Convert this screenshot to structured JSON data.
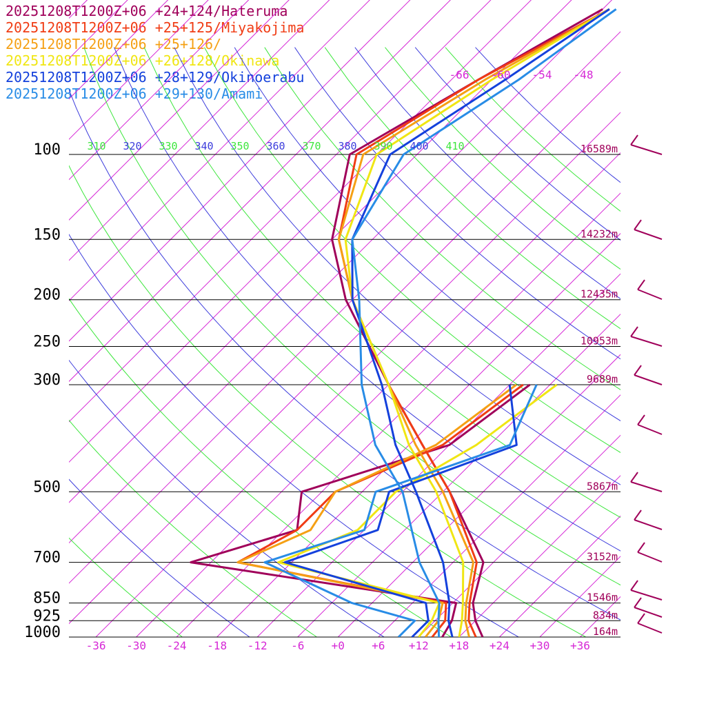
{
  "legend": [
    {
      "label": "20251208T1200Z+06 +24+124/Hateruma",
      "color": "#a0005a"
    },
    {
      "label": "20251208T1200Z+06 +25+125/Miyakojima",
      "color": "#f03c14"
    },
    {
      "label": "20251208T1200Z+06 +25+126/",
      "color": "#f5a014"
    },
    {
      "label": "20251208T1200Z+06 +26+128/Okinawa",
      "color": "#f0e614"
    },
    {
      "label": "20251208T1200Z+06 +28+129/Okinoerabu",
      "color": "#1441dc"
    },
    {
      "label": "20251208T1200Z+06 +29+130/Amami",
      "color": "#288ce6"
    }
  ],
  "chart_data": {
    "type": "line",
    "subtype": "skew-T log-p sounding",
    "x_ticks": [
      "-36",
      "-30",
      "-24",
      "-18",
      "-12",
      "-6",
      "+0",
      "+6",
      "+12",
      "+18",
      "+24",
      "+30",
      "+36"
    ],
    "x_range": [
      -40,
      42
    ],
    "pressure_levels": [
      {
        "p": 100,
        "label": "100",
        "height": "16589m"
      },
      {
        "p": 150,
        "label": "150",
        "height": "14232m"
      },
      {
        "p": 200,
        "label": "200",
        "height": "12435m"
      },
      {
        "p": 250,
        "label": "250",
        "height": "10953m"
      },
      {
        "p": 300,
        "label": "300",
        "height": "9689m"
      },
      {
        "p": 500,
        "label": "500",
        "height": "5867m"
      },
      {
        "p": 700,
        "label": "700",
        "height": "3152m"
      },
      {
        "p": 850,
        "label": "850",
        "height": "1546m"
      },
      {
        "p": 925,
        "label": "925",
        "height": "834m"
      },
      {
        "p": 1000,
        "label": "1000",
        "height": "164m"
      }
    ],
    "theta_labels": [
      "310",
      "320",
      "330",
      "340",
      "350",
      "360",
      "370",
      "380",
      "390",
      "400",
      "410"
    ],
    "mixing_ratio_labels": [
      "-66",
      "-60",
      "-54",
      "-48"
    ],
    "series": [
      {
        "name": "20251208T1200Z+06 +24+124/Hateruma",
        "color": "#a0005a",
        "temp": [
          [
            1000,
            21.5
          ],
          [
            925,
            18
          ],
          [
            850,
            15
          ],
          [
            700,
            10.5
          ],
          [
            500,
            -5
          ],
          [
            400,
            -16
          ],
          [
            300,
            -30
          ],
          [
            200,
            -49
          ],
          [
            150,
            -60
          ],
          [
            100,
            -70
          ],
          [
            70,
            -62
          ],
          [
            50,
            -54
          ]
        ],
        "dew": [
          [
            1000,
            15.5
          ],
          [
            925,
            14.5
          ],
          [
            850,
            12.5
          ],
          [
            700,
            -33
          ],
          [
            600,
            -22
          ],
          [
            500,
            -27
          ],
          [
            400,
            -12
          ],
          [
            300,
            -9
          ]
        ]
      },
      {
        "name": "20251208T1200Z+06 +25+125/Miyakojima",
        "color": "#f03c14",
        "temp": [
          [
            1000,
            20.5
          ],
          [
            925,
            17
          ],
          [
            850,
            14.5
          ],
          [
            700,
            9.5
          ],
          [
            500,
            -5
          ],
          [
            400,
            -16
          ],
          [
            300,
            -30
          ],
          [
            200,
            -48
          ],
          [
            150,
            -59
          ],
          [
            100,
            -69
          ],
          [
            70,
            -62
          ],
          [
            50,
            -53
          ]
        ],
        "dew": [
          [
            1000,
            14
          ],
          [
            925,
            13.5
          ],
          [
            850,
            11
          ],
          [
            700,
            -26
          ],
          [
            600,
            -22
          ],
          [
            500,
            -22
          ],
          [
            400,
            -13
          ],
          [
            300,
            -10
          ]
        ]
      },
      {
        "name": "20251208T1200Z+06 +25+126/",
        "color": "#f5a014",
        "temp": [
          [
            1000,
            19.5
          ],
          [
            925,
            16.5
          ],
          [
            850,
            14
          ],
          [
            700,
            9
          ],
          [
            500,
            -6
          ],
          [
            400,
            -17
          ],
          [
            300,
            -30
          ],
          [
            200,
            -48
          ],
          [
            150,
            -59
          ],
          [
            100,
            -68
          ],
          [
            70,
            -61
          ],
          [
            50,
            -53
          ]
        ],
        "dew": [
          [
            1000,
            13
          ],
          [
            925,
            12.5
          ],
          [
            850,
            10.5
          ],
          [
            700,
            -26
          ],
          [
            600,
            -20
          ],
          [
            500,
            -22
          ],
          [
            400,
            -14
          ],
          [
            300,
            -11
          ]
        ]
      },
      {
        "name": "20251208T1200Z+06 +26+128/Okinawa",
        "color": "#f0e614",
        "temp": [
          [
            1000,
            18
          ],
          [
            925,
            16
          ],
          [
            850,
            13.5
          ],
          [
            700,
            7.5
          ],
          [
            500,
            -7
          ],
          [
            400,
            -18
          ],
          [
            300,
            -30
          ],
          [
            200,
            -48
          ],
          [
            150,
            -58
          ],
          [
            100,
            -66
          ],
          [
            70,
            -60
          ],
          [
            50,
            -53
          ]
        ],
        "dew": [
          [
            1000,
            12
          ],
          [
            925,
            11.5
          ],
          [
            850,
            10
          ],
          [
            700,
            -20
          ],
          [
            600,
            -13
          ],
          [
            500,
            -13
          ],
          [
            400,
            -8
          ],
          [
            300,
            -5
          ]
        ]
      },
      {
        "name": "20251208T1200Z+06 +28+129/Okinoerabu",
        "color": "#1441dc",
        "temp": [
          [
            1000,
            17
          ],
          [
            925,
            14
          ],
          [
            850,
            11.5
          ],
          [
            700,
            4.5
          ],
          [
            500,
            -10
          ],
          [
            400,
            -20
          ],
          [
            300,
            -31
          ],
          [
            200,
            -48
          ],
          [
            150,
            -57
          ],
          [
            100,
            -64
          ],
          [
            70,
            -58
          ],
          [
            50,
            -53
          ]
        ],
        "dew": [
          [
            1000,
            11
          ],
          [
            925,
            11
          ],
          [
            850,
            8
          ],
          [
            700,
            -19
          ],
          [
            600,
            -10
          ],
          [
            500,
            -14
          ],
          [
            400,
            -2
          ],
          [
            300,
            -12
          ]
        ]
      },
      {
        "name": "20251208T1200Z+06 +29+130/Amami",
        "color": "#288ce6",
        "temp": [
          [
            1000,
            15
          ],
          [
            925,
            12.5
          ],
          [
            850,
            10
          ],
          [
            700,
            1
          ],
          [
            500,
            -12
          ],
          [
            400,
            -23
          ],
          [
            300,
            -34
          ],
          [
            200,
            -47
          ],
          [
            150,
            -57
          ],
          [
            100,
            -62
          ],
          [
            70,
            -56
          ],
          [
            50,
            -52
          ]
        ],
        "dew": [
          [
            1000,
            9
          ],
          [
            925,
            9
          ],
          [
            850,
            -3
          ],
          [
            700,
            -22
          ],
          [
            600,
            -12
          ],
          [
            500,
            -16
          ],
          [
            400,
            -3
          ],
          [
            300,
            -8
          ]
        ]
      }
    ]
  }
}
